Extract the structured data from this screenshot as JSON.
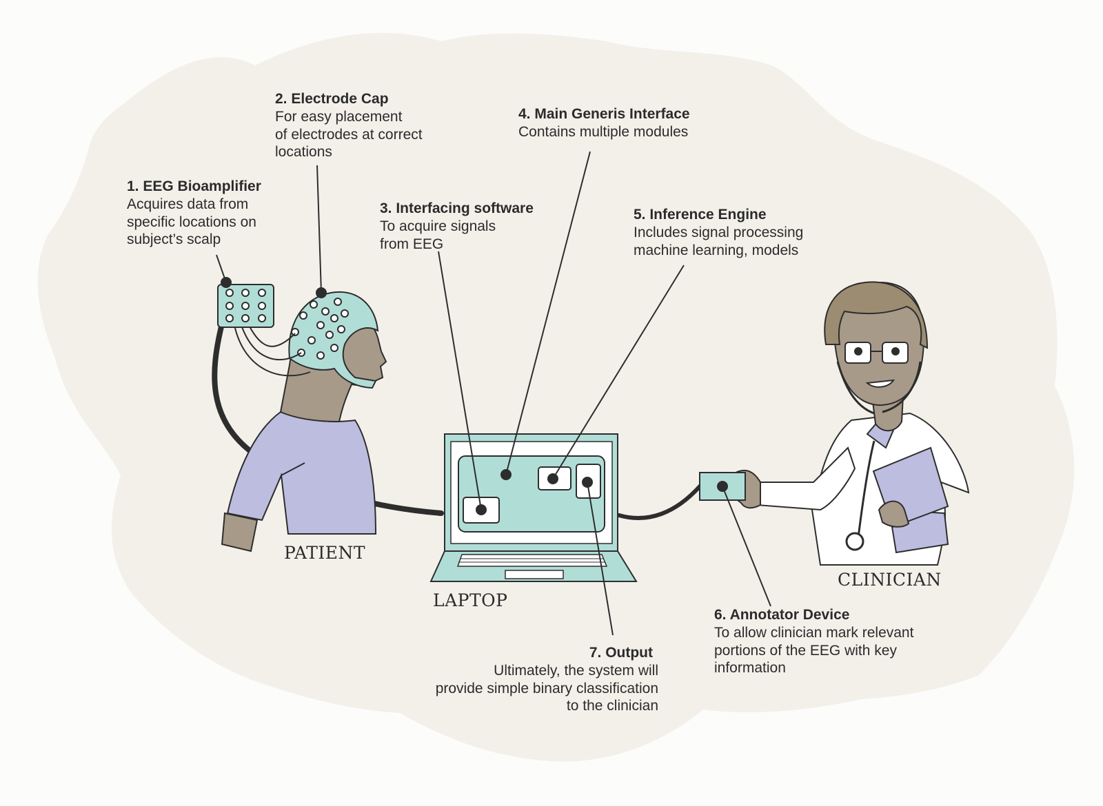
{
  "annotations": [
    {
      "id": "eeg-bioamplifier",
      "title": "1. EEG Bioamplifier",
      "lines": [
        "Acquires data from",
        "specific locations on",
        "subject’s scalp"
      ]
    },
    {
      "id": "electrode-cap",
      "title": "2. Electrode Cap",
      "lines": [
        "For easy placement",
        "of electrodes at correct",
        "locations"
      ]
    },
    {
      "id": "interfacing-software",
      "title": "3. Interfacing software",
      "lines": [
        "To acquire signals",
        "from EEG"
      ]
    },
    {
      "id": "main-interface",
      "title": "4. Main Generis Interface",
      "lines": [
        "Contains multiple modules"
      ]
    },
    {
      "id": "inference-engine",
      "title": "5. Inference Engine",
      "lines": [
        "Includes  signal processing",
        "machine learning, models"
      ]
    },
    {
      "id": "annotator-device",
      "title": "6. Annotator Device",
      "lines": [
        "To allow clinician mark relevant",
        "portions of the EEG with key",
        "information"
      ]
    },
    {
      "id": "output",
      "title": "7. Output",
      "lines": [
        "Ultimately, the system will",
        "provide simple binary classification",
        "to  the clinician"
      ]
    }
  ],
  "captions": {
    "patient": "PATIENT",
    "laptop": "LAPTOP",
    "clinician": "CLINICIAN"
  },
  "colors": {
    "teal": "#b1ddd7",
    "lavender": "#bdbde0",
    "skin": "#a79a89",
    "hair": "#9c8c71",
    "blob": "#f3f0ea",
    "line": "#2d2d2d"
  }
}
